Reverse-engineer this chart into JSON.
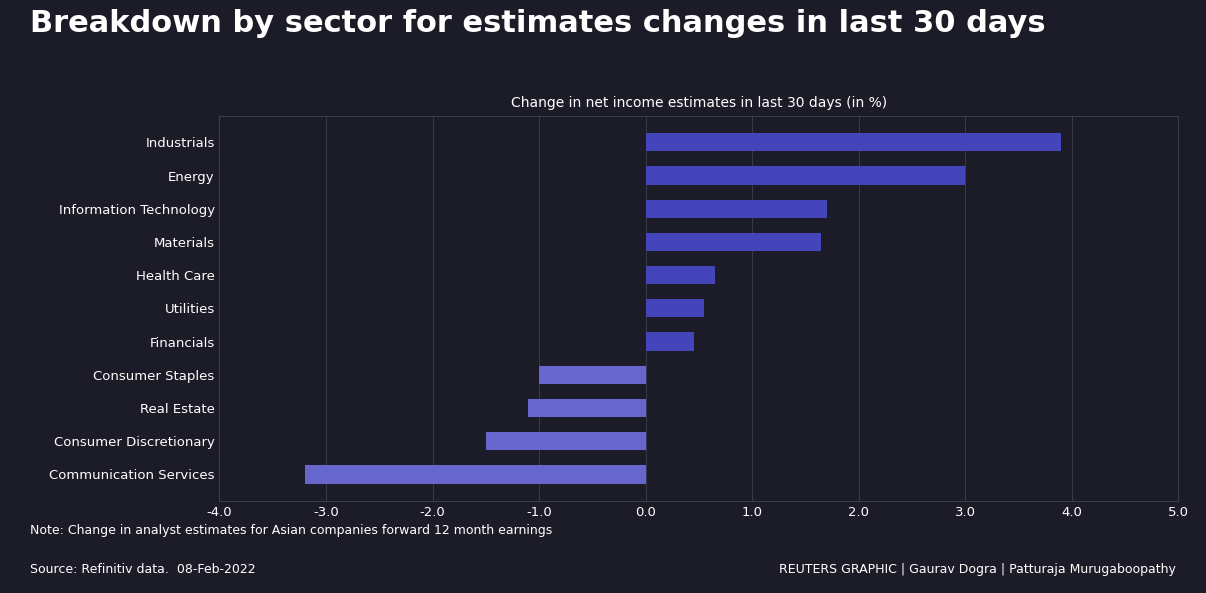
{
  "title": "Breakdown by sector for estimates changes in last 30 days",
  "xlabel": "Change in net income estimates in last 30 days (in %)",
  "categories": [
    "Communication Services",
    "Consumer Discretionary",
    "Real Estate",
    "Consumer Staples",
    "Financials",
    "Utilities",
    "Health Care",
    "Materials",
    "Information Technology",
    "Energy",
    "Industrials"
  ],
  "values": [
    -3.2,
    -1.5,
    -1.1,
    -1.0,
    0.45,
    0.55,
    0.65,
    1.65,
    1.7,
    3.0,
    3.9
  ],
  "bar_color_positive": "#4444bb",
  "bar_color_negative": "#6666cc",
  "bg_color": "#1c1c28",
  "text_color": "#ffffff",
  "grid_color": "#3a3a50",
  "spine_color": "#3a3a50",
  "xlim": [
    -4.0,
    5.0
  ],
  "xticks": [
    -4.0,
    -3.0,
    -2.0,
    -1.0,
    0.0,
    1.0,
    2.0,
    3.0,
    4.0,
    5.0
  ],
  "note_line1": "Note: Change in analyst estimates for Asian companies forward 12 month earnings",
  "note_line2": "Source: Refinitiv data.  08-Feb-2022",
  "credit": "REUTERS GRAPHIC | Gaurav Dogra | Patturaja Murugaboopathy",
  "title_fontsize": 22,
  "subtitle_fontsize": 10,
  "ytick_fontsize": 9.5,
  "xtick_fontsize": 9.5,
  "note_fontsize": 9,
  "credit_fontsize": 9
}
